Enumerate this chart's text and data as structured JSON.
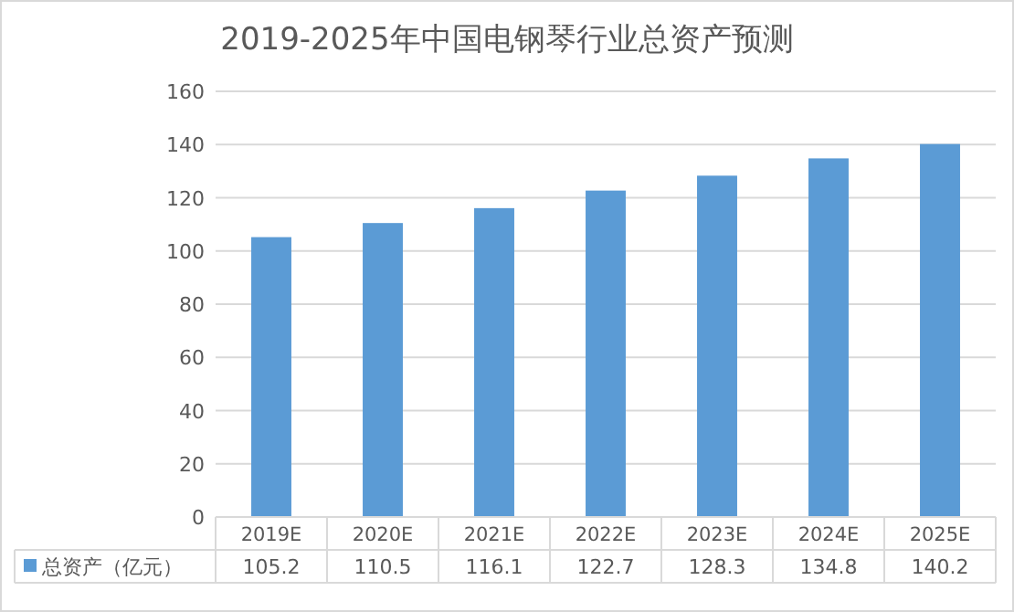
{
  "chart_data": {
    "type": "bar",
    "title": "2019-2025年中国电钢琴行业总资产预测",
    "categories": [
      "2019E",
      "2020E",
      "2021E",
      "2022E",
      "2023E",
      "2024E",
      "2025E"
    ],
    "series": [
      {
        "name": "总资产（亿元）",
        "color": "#5b9bd5",
        "values": [
          105.2,
          110.5,
          116.1,
          122.7,
          128.3,
          134.8,
          140.2
        ]
      }
    ],
    "ylim": [
      0,
      160
    ],
    "yticks": [
      0,
      20,
      40,
      60,
      80,
      100,
      120,
      140,
      160
    ],
    "grid": "y",
    "data_labels": true,
    "legend": "bottom"
  }
}
